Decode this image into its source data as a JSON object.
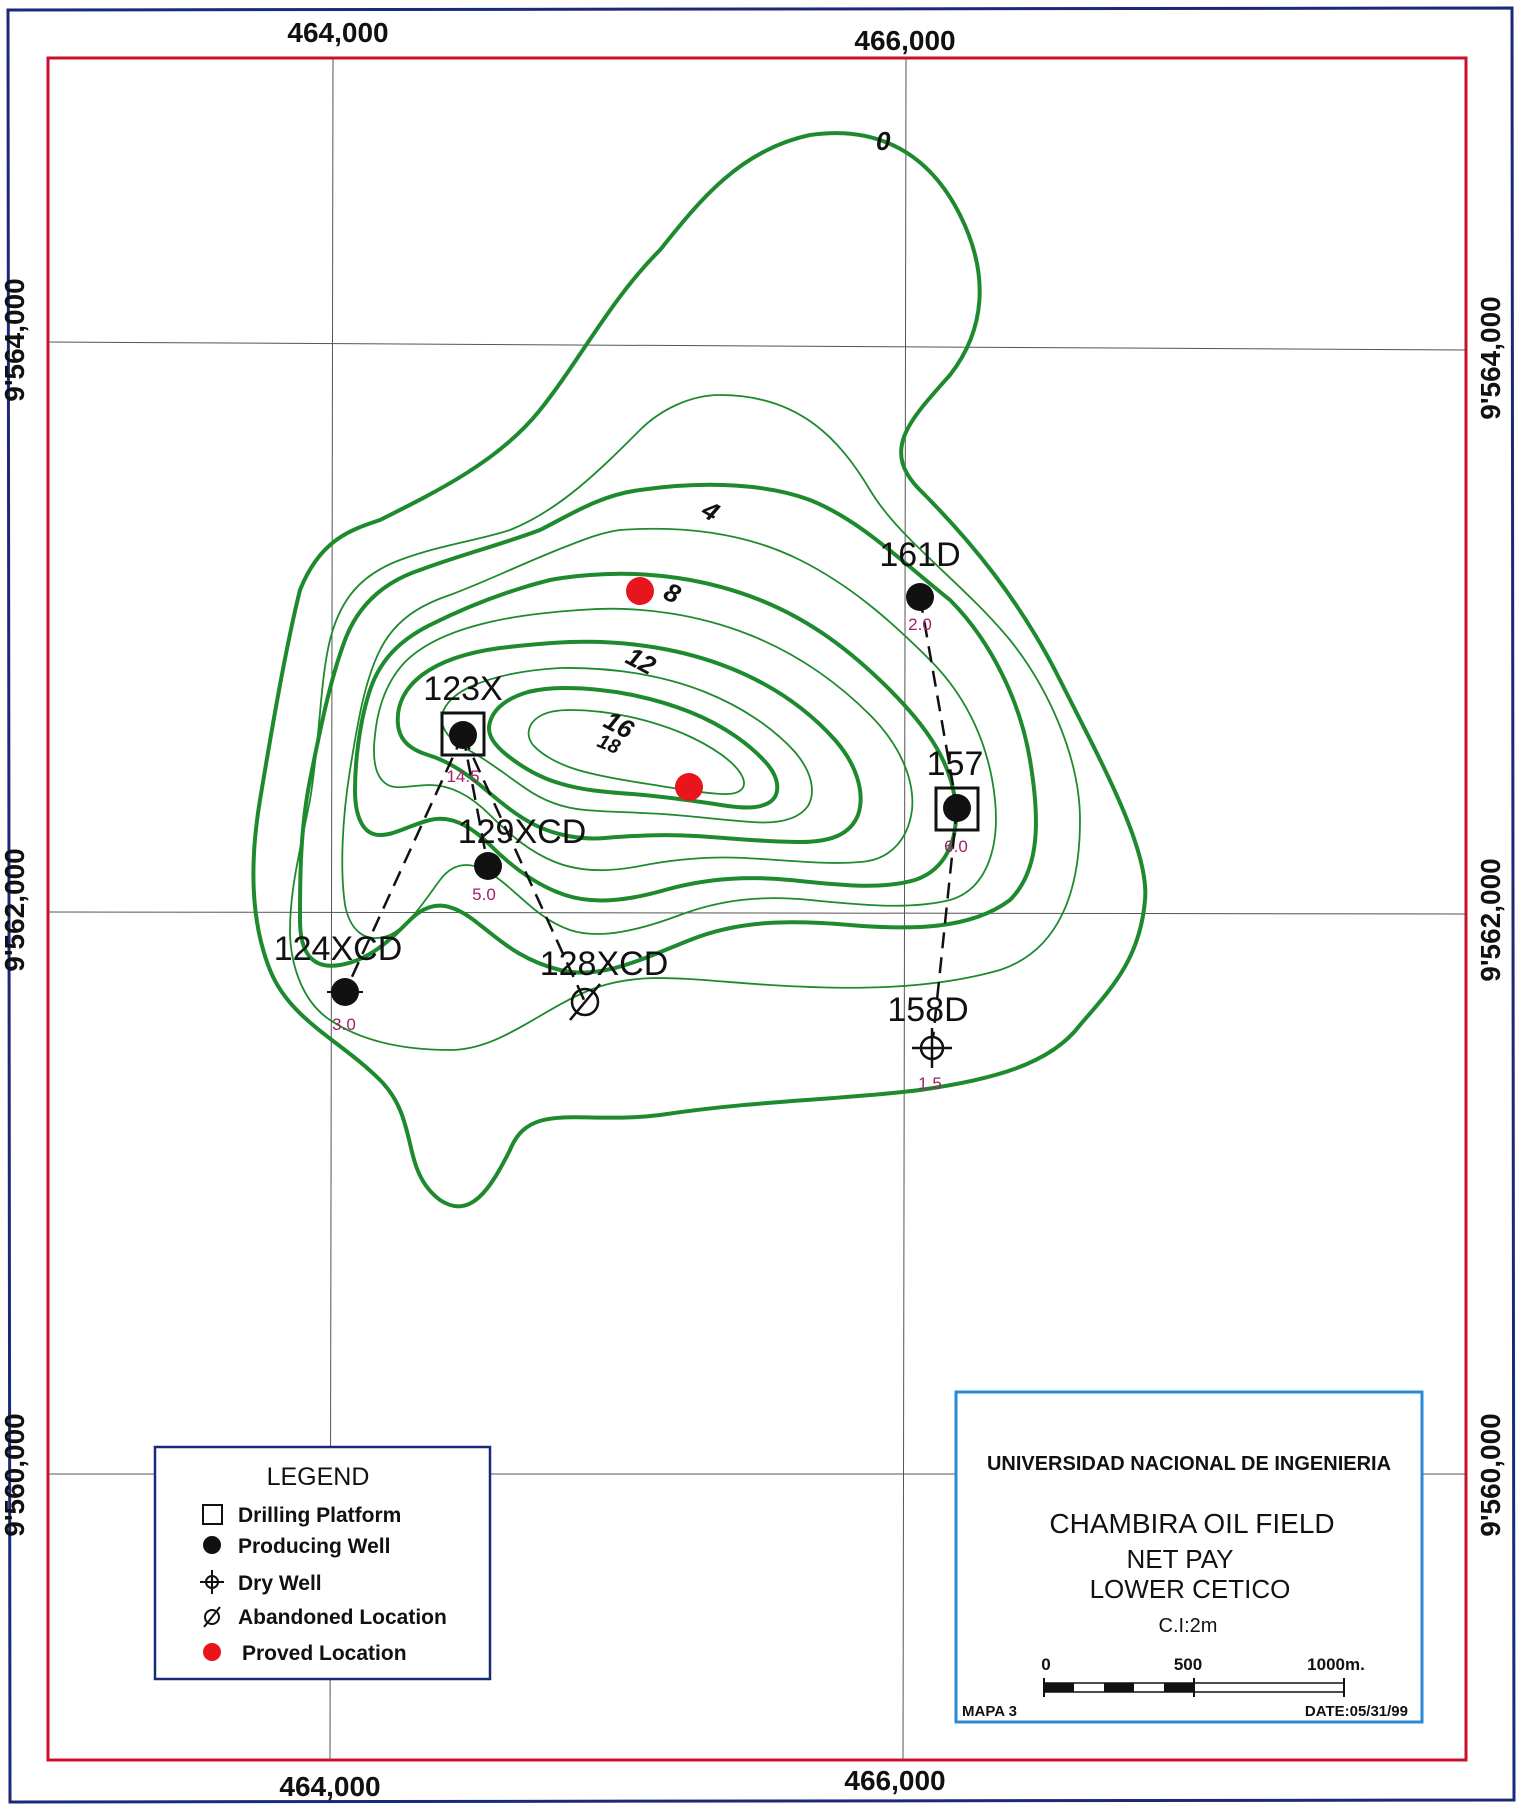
{
  "coordinates": {
    "top": [
      "464,000",
      "466,000"
    ],
    "bottom": [
      "464,000",
      "466,000"
    ],
    "left": [
      "9'564,000",
      "9'562,000",
      "9'560,000"
    ],
    "right": [
      "9'564,000",
      "9'562,000",
      "9'560,000"
    ]
  },
  "contour_labels": [
    "0",
    "4",
    "8",
    "12",
    "16",
    "18"
  ],
  "wells": [
    {
      "id": "123X",
      "type": "producing",
      "platform": true,
      "value": "14.5"
    },
    {
      "id": "129XCD",
      "type": "producing",
      "platform": false,
      "value": "5.0"
    },
    {
      "id": "124XCD",
      "type": "producing",
      "platform": false,
      "value": "3.0"
    },
    {
      "id": "128XCD",
      "type": "abandoned",
      "platform": false,
      "value": ""
    },
    {
      "id": "161D",
      "type": "producing",
      "platform": false,
      "value": "2.0"
    },
    {
      "id": "157",
      "type": "producing",
      "platform": true,
      "value": "6.0"
    },
    {
      "id": "158D",
      "type": "dry",
      "platform": false,
      "value": "1.5"
    }
  ],
  "legend": {
    "title": "LEGEND",
    "items": [
      {
        "symbol": "drilling-platform",
        "label": "Drilling Platform"
      },
      {
        "symbol": "producing-well",
        "label": "Producing Well"
      },
      {
        "symbol": "dry-well",
        "label": "Dry Well"
      },
      {
        "symbol": "abandoned-location",
        "label": "Abandoned Location"
      },
      {
        "symbol": "proved-location",
        "label": "Proved Location"
      }
    ]
  },
  "title_block": {
    "institution": "UNIVERSIDAD NACIONAL DE INGENIERIA",
    "field": "CHAMBIRA OIL FIELD",
    "subject": "NET PAY",
    "formation": "LOWER CETICO",
    "contour_interval": "C.I:2m",
    "scale_labels": [
      "0",
      "500",
      "1000m."
    ],
    "map_number": "MAPA 3",
    "date": "DATE:05/31/99"
  },
  "colors": {
    "contour": "#1e8a2e",
    "frame": "#c8102e",
    "outer_border": "#1a2a7a",
    "title_box": "#2a8ad6",
    "well_value": "#a0206a",
    "proved_location": "#e8161c"
  }
}
